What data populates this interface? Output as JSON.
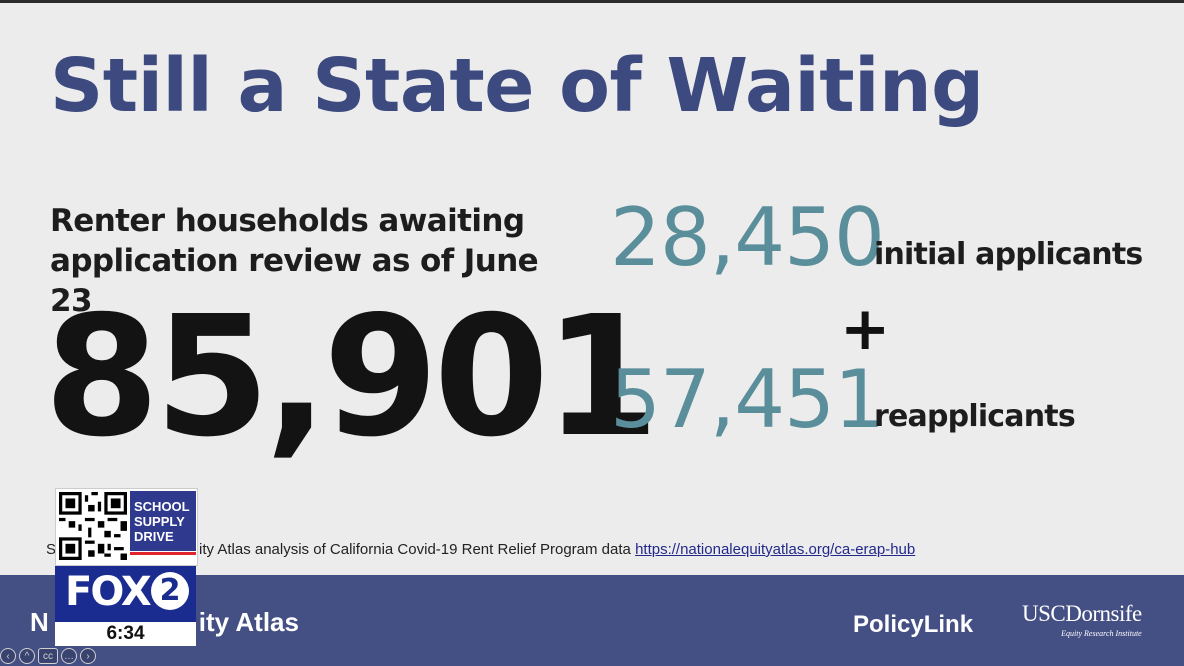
{
  "slide": {
    "title": "Still a State of Waiting",
    "subtitle": "Renter households awaiting application review as of June 23",
    "total": "85,901",
    "stat1": {
      "value": "28,450",
      "label": "initial applicants"
    },
    "plus": "+",
    "stat2": {
      "value": "57,451",
      "label": "reapplicants"
    },
    "source_prefix": "S",
    "source_text": "ity Atlas analysis of California Covid-19 Rent Relief Program data",
    "source_link": "https://nationalequityatlas.org/ca-erap-hub"
  },
  "footer": {
    "left_a": "N",
    "left_b": "ity Atlas",
    "policylink": "PolicyLink",
    "usc": "USCDornsife",
    "usc_sub": "Equity Research Institute"
  },
  "overlay": {
    "promo_text": "SCHOOL SUPPLY DRIVE",
    "station": "FOX",
    "channel": "2",
    "time": "6:34"
  },
  "controls": [
    {
      "icon": "back-icon",
      "glyph": "‹"
    },
    {
      "icon": "up-icon",
      "glyph": "^"
    },
    {
      "icon": "captions-icon",
      "glyph": "cc"
    },
    {
      "icon": "more-icon",
      "glyph": "…"
    },
    {
      "icon": "forward-icon",
      "glyph": "›"
    }
  ],
  "colors": {
    "title": "#3d4a80",
    "stat_number": "#5a8e9a",
    "footer_bg": "#444f84",
    "fox_blue": "#1a2c8f"
  }
}
